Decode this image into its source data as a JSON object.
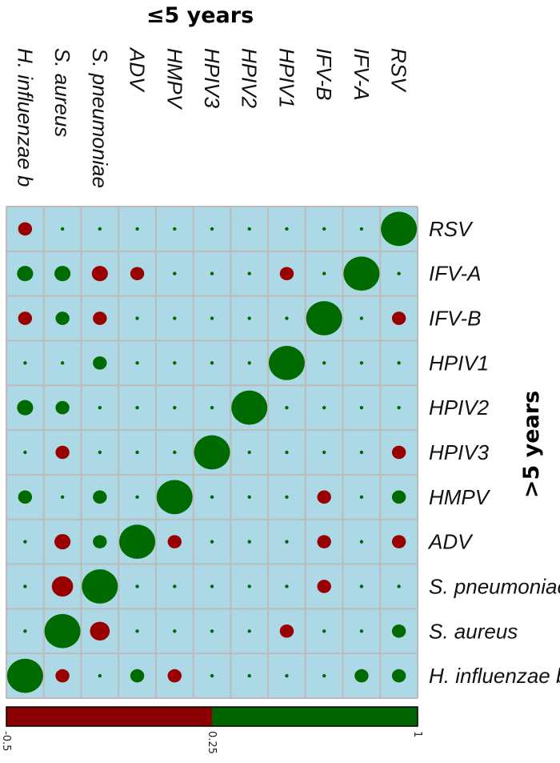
{
  "chart_data": {
    "type": "heatmap",
    "title_top": "≤5 years",
    "title_right": ">5 years",
    "columns": [
      "H. influenzae b",
      "S. aureus",
      "S. pneumoniae",
      "ADV",
      "HMPV",
      "HPIV3",
      "HPIV2",
      "HPIV1",
      "IFV-B",
      "IFV-A",
      "RSV"
    ],
    "rows": [
      "RSV",
      "IFV-A",
      "IFV-B",
      "HPIV1",
      "HPIV2",
      "HPIV3",
      "HMPV",
      "ADV",
      "S. pneumoniae",
      "S. aureus",
      "H. influenzae b"
    ],
    "values": [
      [
        -0.15,
        0.0,
        0.0,
        0.0,
        0.0,
        0.0,
        0.0,
        0.0,
        0.0,
        0.0,
        1.0
      ],
      [
        0.2,
        0.2,
        -0.2,
        -0.15,
        0.0,
        0.0,
        0.0,
        -0.15,
        0.0,
        1.0,
        0.0
      ],
      [
        -0.15,
        0.15,
        -0.15,
        0.0,
        0.0,
        0.0,
        0.0,
        0.0,
        1.0,
        0.0,
        -0.15
      ],
      [
        0.0,
        0.0,
        0.15,
        0.0,
        0.0,
        0.0,
        0.0,
        1.0,
        0.0,
        0.0,
        0.0
      ],
      [
        0.2,
        0.15,
        0.0,
        0.0,
        0.0,
        0.0,
        1.0,
        0.0,
        0.0,
        0.0,
        0.0
      ],
      [
        0.0,
        -0.15,
        0.0,
        0.0,
        0.0,
        1.0,
        0.0,
        0.0,
        0.0,
        0.0,
        -0.15
      ],
      [
        0.15,
        0.0,
        0.15,
        0.0,
        1.0,
        0.0,
        0.0,
        0.0,
        -0.15,
        0.0,
        0.15
      ],
      [
        0.0,
        -0.2,
        0.15,
        1.0,
        -0.15,
        0.0,
        0.0,
        0.0,
        -0.15,
        0.0,
        -0.15
      ],
      [
        0.0,
        -0.35,
        1.0,
        0.0,
        0.0,
        0.0,
        0.0,
        0.0,
        -0.15,
        0.0,
        0.0
      ],
      [
        0.0,
        1.0,
        -0.3,
        0.0,
        0.0,
        0.0,
        0.0,
        -0.15,
        0.0,
        0.0,
        0.15
      ],
      [
        1.0,
        -0.15,
        0.0,
        0.15,
        -0.15,
        0.0,
        0.0,
        0.0,
        0.0,
        0.15,
        0.15
      ]
    ],
    "colorbar": {
      "min": -0.5,
      "max": 1,
      "ticks": [
        "-0.5",
        "0.25",
        "1"
      ],
      "negative_color": "#8b0000",
      "positive_color": "#006400"
    },
    "colors": {
      "cell_background": "#add8e6",
      "grid_line": "#bbbbbb",
      "negative": "#990000",
      "positive": "#006b00"
    }
  }
}
